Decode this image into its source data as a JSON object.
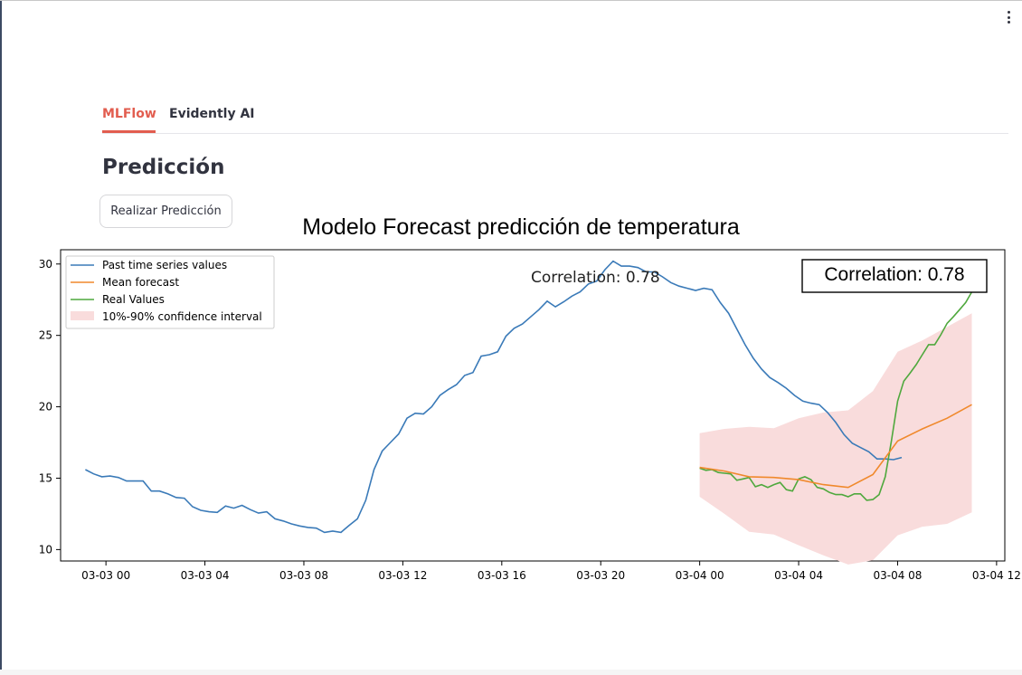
{
  "menu": {
    "icon": "kebab-menu-icon"
  },
  "tabs": [
    {
      "label": "MLFlow",
      "active": true
    },
    {
      "label": "Evidently AI",
      "active": false
    }
  ],
  "page": {
    "title": "Predicción",
    "predict_button": "Realizar Predicción"
  },
  "colors": {
    "accent": "#e25d4f",
    "past": "#3a7ab8",
    "mean": "#f0892c",
    "real": "#4fa83d",
    "band": "#f9dcdc"
  },
  "chart_data": {
    "type": "line",
    "title": "Modelo Forecast predicción de temperatura",
    "xlabel": "",
    "ylabel": "",
    "x_axis": {
      "min": "03-02 22:10",
      "max": "03-04 12:20",
      "format": "MM-DD HH"
    },
    "xticks": [
      "03-03 00",
      "03-03 04",
      "03-03 08",
      "03-03 12",
      "03-03 16",
      "03-03 20",
      "03-04 00",
      "03-04 04",
      "03-04 08",
      "03-04 12"
    ],
    "ylim": [
      9.2,
      31.0
    ],
    "yticks": [
      10,
      15,
      20,
      25,
      30
    ],
    "grid": false,
    "legend_position": "top-left",
    "annotations": {
      "plain": "Correlation: 0.78",
      "boxed": "Correlation: 0.78"
    },
    "series": [
      {
        "name": "Past time series values",
        "color": "#3a7ab8",
        "points": [
          [
            "03-02 23:10",
            15.6
          ],
          [
            "03-02 23:30",
            15.3
          ],
          [
            "03-02 23:50",
            15.1
          ],
          [
            "03-03 00:10",
            15.15
          ],
          [
            "03-03 00:30",
            15.05
          ],
          [
            "03-03 00:50",
            14.8
          ],
          [
            "03-03 01:10",
            14.8
          ],
          [
            "03-03 01:30",
            14.8
          ],
          [
            "03-03 01:50",
            14.1
          ],
          [
            "03-03 02:10",
            14.1
          ],
          [
            "03-03 02:30",
            13.9
          ],
          [
            "03-03 02:50",
            13.65
          ],
          [
            "03-03 03:10",
            13.6
          ],
          [
            "03-03 03:30",
            13.0
          ],
          [
            "03-03 03:50",
            12.75
          ],
          [
            "03-03 04:10",
            12.65
          ],
          [
            "03-03 04:30",
            12.6
          ],
          [
            "03-03 04:50",
            13.05
          ],
          [
            "03-03 05:10",
            12.9
          ],
          [
            "03-03 05:30",
            13.1
          ],
          [
            "03-03 05:50",
            12.8
          ],
          [
            "03-03 06:10",
            12.55
          ],
          [
            "03-03 06:30",
            12.65
          ],
          [
            "03-03 06:50",
            12.15
          ],
          [
            "03-03 07:10",
            12.0
          ],
          [
            "03-03 07:30",
            11.8
          ],
          [
            "03-03 07:50",
            11.65
          ],
          [
            "03-03 08:10",
            11.55
          ],
          [
            "03-03 08:30",
            11.5
          ],
          [
            "03-03 08:50",
            11.2
          ],
          [
            "03-03 09:10",
            11.3
          ],
          [
            "03-03 09:30",
            11.2
          ],
          [
            "03-03 09:50",
            11.7
          ],
          [
            "03-03 10:10",
            12.15
          ],
          [
            "03-03 10:30",
            13.45
          ],
          [
            "03-03 10:50",
            15.6
          ],
          [
            "03-03 11:10",
            16.9
          ],
          [
            "03-03 11:30",
            17.5
          ],
          [
            "03-03 11:50",
            18.1
          ],
          [
            "03-03 12:10",
            19.2
          ],
          [
            "03-03 12:30",
            19.55
          ],
          [
            "03-03 12:50",
            19.5
          ],
          [
            "03-03 13:10",
            20.0
          ],
          [
            "03-03 13:30",
            20.8
          ],
          [
            "03-03 13:50",
            21.2
          ],
          [
            "03-03 14:10",
            21.55
          ],
          [
            "03-03 14:30",
            22.2
          ],
          [
            "03-03 14:50",
            22.4
          ],
          [
            "03-03 15:10",
            23.55
          ],
          [
            "03-03 15:30",
            23.65
          ],
          [
            "03-03 15:50",
            23.85
          ],
          [
            "03-03 16:10",
            24.95
          ],
          [
            "03-03 16:30",
            25.5
          ],
          [
            "03-03 16:50",
            25.8
          ],
          [
            "03-03 17:10",
            26.3
          ],
          [
            "03-03 17:30",
            26.8
          ],
          [
            "03-03 17:50",
            27.4
          ],
          [
            "03-03 18:10",
            27.0
          ],
          [
            "03-03 18:30",
            27.35
          ],
          [
            "03-03 18:50",
            27.75
          ],
          [
            "03-03 19:10",
            28.05
          ],
          [
            "03-03 19:30",
            28.6
          ],
          [
            "03-03 19:50",
            28.8
          ],
          [
            "03-03 20:10",
            29.6
          ],
          [
            "03-03 20:30",
            30.2
          ],
          [
            "03-03 20:50",
            29.85
          ],
          [
            "03-03 21:10",
            29.85
          ],
          [
            "03-03 21:30",
            29.75
          ],
          [
            "03-03 21:50",
            29.45
          ],
          [
            "03-03 22:10",
            29.45
          ],
          [
            "03-03 22:30",
            29.1
          ],
          [
            "03-03 22:50",
            28.7
          ],
          [
            "03-03 23:10",
            28.45
          ],
          [
            "03-03 23:30",
            28.3
          ],
          [
            "03-03 23:50",
            28.15
          ],
          [
            "03-04 00:10",
            28.3
          ],
          [
            "03-04 00:30",
            28.2
          ],
          [
            "03-04 00:50",
            27.3
          ],
          [
            "03-04 01:10",
            26.55
          ],
          [
            "03-04 01:30",
            25.45
          ],
          [
            "03-04 01:50",
            24.35
          ],
          [
            "03-04 02:10",
            23.4
          ],
          [
            "03-04 02:30",
            22.65
          ],
          [
            "03-04 02:50",
            22.05
          ],
          [
            "03-04 03:10",
            21.7
          ],
          [
            "03-04 03:30",
            21.3
          ],
          [
            "03-04 03:50",
            20.8
          ],
          [
            "03-04 04:10",
            20.4
          ],
          [
            "03-04 04:30",
            20.25
          ],
          [
            "03-04 04:50",
            20.15
          ],
          [
            "03-04 05:10",
            19.6
          ],
          [
            "03-04 05:30",
            18.9
          ],
          [
            "03-04 05:50",
            18.05
          ],
          [
            "03-04 06:10",
            17.45
          ],
          [
            "03-04 06:30",
            17.15
          ],
          [
            "03-04 06:50",
            16.85
          ],
          [
            "03-04 07:10",
            16.35
          ],
          [
            "03-04 07:30",
            16.35
          ],
          [
            "03-04 07:50",
            16.3
          ],
          [
            "03-04 08:10",
            16.45
          ]
        ]
      },
      {
        "name": "Mean forecast",
        "color": "#f0892c",
        "points": [
          [
            "03-04 00:00",
            15.75
          ],
          [
            "03-04 01:00",
            15.5
          ],
          [
            "03-04 02:00",
            15.1
          ],
          [
            "03-04 03:00",
            15.05
          ],
          [
            "03-04 04:00",
            14.9
          ],
          [
            "03-04 05:00",
            14.55
          ],
          [
            "03-04 06:00",
            14.35
          ],
          [
            "03-04 07:00",
            15.25
          ],
          [
            "03-04 08:00",
            17.6
          ],
          [
            "03-04 09:00",
            18.45
          ],
          [
            "03-04 10:00",
            19.2
          ],
          [
            "03-04 11:00",
            20.15
          ]
        ]
      },
      {
        "name": "Real Values",
        "color": "#4fa83d",
        "points": [
          [
            "03-04 00:00",
            15.7
          ],
          [
            "03-04 00:15",
            15.55
          ],
          [
            "03-04 00:30",
            15.6
          ],
          [
            "03-04 00:45",
            15.4
          ],
          [
            "03-04 01:00",
            15.35
          ],
          [
            "03-04 01:15",
            15.3
          ],
          [
            "03-04 01:30",
            14.85
          ],
          [
            "03-04 01:45",
            14.95
          ],
          [
            "03-04 02:00",
            15.05
          ],
          [
            "03-04 02:15",
            14.4
          ],
          [
            "03-04 02:30",
            14.55
          ],
          [
            "03-04 02:45",
            14.35
          ],
          [
            "03-04 03:00",
            14.55
          ],
          [
            "03-04 03:15",
            14.7
          ],
          [
            "03-04 03:30",
            14.2
          ],
          [
            "03-04 03:45",
            14.1
          ],
          [
            "03-04 04:00",
            14.95
          ],
          [
            "03-04 04:15",
            15.1
          ],
          [
            "03-04 04:30",
            14.9
          ],
          [
            "03-04 04:45",
            14.35
          ],
          [
            "03-04 05:00",
            14.25
          ],
          [
            "03-04 05:15",
            14.0
          ],
          [
            "03-04 05:30",
            13.85
          ],
          [
            "03-04 05:45",
            13.85
          ],
          [
            "03-04 06:00",
            13.7
          ],
          [
            "03-04 06:15",
            13.9
          ],
          [
            "03-04 06:30",
            13.9
          ],
          [
            "03-04 06:45",
            13.45
          ],
          [
            "03-04 07:00",
            13.5
          ],
          [
            "03-04 07:15",
            13.85
          ],
          [
            "03-04 07:30",
            15.1
          ],
          [
            "03-04 07:45",
            17.6
          ],
          [
            "03-04 08:00",
            20.4
          ],
          [
            "03-04 08:15",
            21.8
          ],
          [
            "03-04 08:30",
            22.35
          ],
          [
            "03-04 08:45",
            22.95
          ],
          [
            "03-04 09:00",
            23.65
          ],
          [
            "03-04 09:15",
            24.35
          ],
          [
            "03-04 09:30",
            24.35
          ],
          [
            "03-04 09:45",
            25.05
          ],
          [
            "03-04 10:00",
            25.85
          ],
          [
            "03-04 10:15",
            26.3
          ],
          [
            "03-04 10:30",
            26.8
          ],
          [
            "03-04 10:45",
            27.3
          ],
          [
            "03-04 11:00",
            28.05
          ]
        ]
      }
    ],
    "band": {
      "name": "10%-90% confidence interval",
      "color": "#f9dcdc",
      "x": [
        "03-04 00:00",
        "03-04 01:00",
        "03-04 02:00",
        "03-04 03:00",
        "03-04 04:00",
        "03-04 05:00",
        "03-04 06:00",
        "03-04 07:00",
        "03-04 08:00",
        "03-04 09:00",
        "03-04 10:00",
        "03-04 11:00"
      ],
      "lower": [
        13.7,
        12.5,
        11.25,
        11.05,
        10.3,
        9.6,
        8.95,
        9.25,
        11.0,
        11.6,
        11.8,
        12.6
      ],
      "upper": [
        18.15,
        18.45,
        18.6,
        18.5,
        19.2,
        19.6,
        19.75,
        21.1,
        23.85,
        24.65,
        25.6,
        26.55
      ]
    }
  }
}
